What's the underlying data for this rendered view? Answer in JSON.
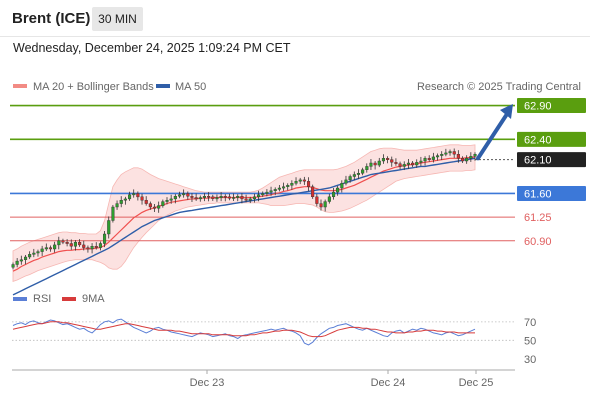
{
  "header": {
    "instrument": "Brent (ICE)",
    "timeframe": "30 MIN"
  },
  "datetime": "Wednesday, December 24, 2025 1:09:24 PM CET",
  "legend": {
    "ma20": "MA 20 + Bollinger Bands",
    "ma50": "MA 50",
    "credit": "Research © 2025 Trading Central"
  },
  "rsi_legend": {
    "rsi": "RSI",
    "ma9": "9MA"
  },
  "colors": {
    "up": "#2e9e2e",
    "down": "#d32f2f",
    "ma20": "#f0504f",
    "band": "#fbd3d1",
    "ma50": "#2f5ea8",
    "resistance": "#5a9e0f",
    "support_main": "#3c78d8",
    "support": "#e06060",
    "current": "#222222",
    "arrow": "#2f5ea8",
    "rsi": "#5b7fd6",
    "rsi_ma": "#d73b3b"
  },
  "chart_data": {
    "type": "candlestick",
    "title": "Brent (ICE)",
    "timeframe": "30 MIN",
    "ylim": [
      60.35,
      63.1
    ],
    "xlabels": [
      "Dec 23",
      "Dec 24",
      "Dec 25"
    ],
    "levels": [
      {
        "value": 62.9,
        "label": "62.90",
        "kind": "resistance"
      },
      {
        "value": 62.4,
        "label": "62.40",
        "kind": "resistance"
      },
      {
        "value": 62.1,
        "label": "62.10",
        "kind": "current"
      },
      {
        "value": 61.6,
        "label": "61.60",
        "kind": "support_main"
      },
      {
        "value": 61.25,
        "label": "61.25",
        "kind": "support"
      },
      {
        "value": 60.9,
        "label": "60.90",
        "kind": "support"
      }
    ],
    "close": [
      60.55,
      60.6,
      60.62,
      60.66,
      60.7,
      60.72,
      60.74,
      60.78,
      60.8,
      60.78,
      60.84,
      60.9,
      60.88,
      60.86,
      60.82,
      60.88,
      60.84,
      60.8,
      60.78,
      60.82,
      60.8,
      60.86,
      61.0,
      61.2,
      61.4,
      61.45,
      61.5,
      61.52,
      61.58,
      61.6,
      61.55,
      61.5,
      61.45,
      61.4,
      61.38,
      61.42,
      61.48,
      61.5,
      61.52,
      61.56,
      61.58,
      61.6,
      61.56,
      61.54,
      61.52,
      61.54,
      61.56,
      61.55,
      61.52,
      61.54,
      61.56,
      61.55,
      61.53,
      61.54,
      61.56,
      61.52,
      61.5,
      61.52,
      61.55,
      61.58,
      61.6,
      61.62,
      61.64,
      61.66,
      61.68,
      61.7,
      61.72,
      61.75,
      61.78,
      61.8,
      61.78,
      61.7,
      61.55,
      61.45,
      61.4,
      61.48,
      61.55,
      61.62,
      61.68,
      61.75,
      61.8,
      61.85,
      61.88,
      61.9,
      61.95,
      62.0,
      62.05,
      62.02,
      62.08,
      62.12,
      62.1,
      62.06,
      62.04,
      62.0,
      62.03,
      62.05,
      62.02,
      62.06,
      62.08,
      62.12,
      62.1,
      62.14,
      62.16,
      62.18,
      62.2,
      62.22,
      62.18,
      62.12,
      62.08,
      62.12,
      62.15,
      62.18
    ],
    "ma20": [
      60.45,
      60.48,
      60.52,
      60.55,
      60.58,
      60.61,
      60.63,
      60.66,
      60.68,
      60.7,
      60.72,
      60.74,
      60.75,
      60.76,
      60.76,
      60.77,
      60.77,
      60.78,
      60.78,
      60.78,
      60.79,
      60.8,
      60.83,
      60.88,
      60.94,
      61.0,
      61.06,
      61.12,
      61.18,
      61.24,
      61.28,
      61.32,
      61.35,
      61.37,
      61.39,
      61.41,
      61.43,
      61.45,
      61.47,
      61.48,
      61.49,
      61.5,
      61.51,
      61.52,
      61.52,
      61.53,
      61.53,
      61.53,
      61.54,
      61.54,
      61.54,
      61.54,
      61.54,
      61.54,
      61.54,
      61.54,
      61.54,
      61.54,
      61.54,
      61.55,
      61.56,
      61.57,
      61.58,
      61.6,
      61.61,
      61.63,
      61.64,
      61.66,
      61.68,
      61.69,
      61.7,
      61.7,
      61.69,
      61.67,
      61.65,
      61.64,
      61.64,
      61.64,
      61.65,
      61.66,
      61.68,
      61.7,
      61.72,
      61.75,
      61.78,
      61.81,
      61.84,
      61.87,
      61.9,
      61.93,
      61.95,
      61.97,
      61.99,
      62.0,
      62.01,
      62.02,
      62.03,
      62.04,
      62.05,
      62.06,
      62.07,
      62.08,
      62.09,
      62.1,
      62.11,
      62.12,
      62.12,
      62.12,
      62.12,
      62.13,
      62.13,
      62.14
    ],
    "band_upper": [
      60.75,
      60.78,
      60.82,
      60.85,
      60.88,
      60.9,
      60.92,
      60.94,
      60.96,
      60.98,
      61.0,
      61.02,
      61.03,
      61.03,
      61.02,
      61.02,
      61.01,
      61.01,
      61.0,
      61.0,
      61.0,
      61.05,
      61.2,
      61.45,
      61.7,
      61.8,
      61.88,
      61.92,
      61.95,
      61.98,
      61.98,
      61.96,
      61.92,
      61.88,
      61.85,
      61.82,
      61.8,
      61.78,
      61.76,
      61.74,
      61.72,
      61.7,
      61.68,
      61.66,
      61.64,
      61.63,
      61.62,
      61.62,
      61.62,
      61.62,
      61.62,
      61.62,
      61.62,
      61.62,
      61.62,
      61.62,
      61.62,
      61.62,
      61.63,
      61.65,
      61.68,
      61.72,
      61.76,
      61.8,
      61.84,
      61.86,
      61.88,
      61.9,
      61.92,
      61.94,
      61.95,
      61.95,
      61.95,
      61.95,
      61.95,
      61.95,
      61.95,
      61.95,
      61.96,
      61.98,
      62.0,
      62.03,
      62.06,
      62.1,
      62.14,
      62.18,
      62.22,
      62.24,
      62.26,
      62.27,
      62.27,
      62.27,
      62.26,
      62.25,
      62.24,
      62.24,
      62.24,
      62.24,
      62.25,
      62.26,
      62.27,
      62.28,
      62.29,
      62.3,
      62.31,
      62.32,
      62.32,
      62.32,
      62.31,
      62.31,
      62.31,
      62.32
    ],
    "band_lower": [
      60.3,
      60.32,
      60.35,
      60.38,
      60.4,
      60.43,
      60.46,
      60.48,
      60.5,
      60.52,
      60.54,
      60.56,
      60.58,
      60.6,
      60.61,
      60.62,
      60.62,
      60.62,
      60.62,
      60.62,
      60.6,
      60.58,
      60.55,
      60.5,
      60.48,
      60.48,
      60.52,
      60.6,
      60.7,
      60.8,
      60.88,
      60.95,
      61.02,
      61.08,
      61.14,
      61.2,
      61.24,
      61.28,
      61.31,
      61.34,
      61.36,
      61.38,
      61.4,
      61.41,
      61.42,
      61.43,
      61.44,
      61.45,
      61.45,
      61.46,
      61.46,
      61.46,
      61.46,
      61.46,
      61.46,
      61.46,
      61.46,
      61.46,
      61.46,
      61.46,
      61.45,
      61.44,
      61.42,
      61.42,
      61.42,
      61.42,
      61.43,
      61.44,
      61.45,
      61.45,
      61.45,
      61.44,
      61.43,
      61.4,
      61.36,
      61.33,
      61.32,
      61.32,
      61.33,
      61.34,
      61.36,
      61.38,
      61.41,
      61.44,
      61.47,
      61.5,
      61.54,
      61.58,
      61.62,
      61.66,
      61.7,
      61.74,
      61.78,
      61.8,
      61.82,
      61.83,
      61.84,
      61.85,
      61.86,
      61.87,
      61.88,
      61.89,
      61.9,
      61.91,
      61.92,
      61.93,
      61.93,
      61.93,
      61.93,
      61.94,
      61.94,
      61.95
    ],
    "ma50": [
      60.1,
      60.13,
      60.16,
      60.19,
      60.22,
      60.25,
      60.28,
      60.31,
      60.34,
      60.37,
      60.4,
      60.43,
      60.46,
      60.49,
      60.52,
      60.55,
      60.58,
      60.61,
      60.64,
      60.67,
      60.7,
      60.73,
      60.76,
      60.79,
      60.83,
      60.87,
      60.91,
      60.95,
      60.99,
      61.03,
      61.07,
      61.11,
      61.14,
      61.17,
      61.2,
      61.22,
      61.24,
      61.26,
      61.28,
      61.3,
      61.32,
      61.33,
      61.34,
      61.35,
      61.36,
      61.37,
      61.38,
      61.39,
      61.4,
      61.41,
      61.42,
      61.43,
      61.44,
      61.45,
      61.46,
      61.47,
      61.48,
      61.49,
      61.5,
      61.51,
      61.52,
      61.53,
      61.54,
      61.55,
      61.56,
      61.57,
      61.58,
      61.59,
      61.6,
      61.61,
      61.62,
      61.63,
      61.64,
      61.65,
      61.66,
      61.67,
      61.68,
      61.7,
      61.72,
      61.74,
      61.76,
      61.78,
      61.8,
      61.82,
      61.84,
      61.86,
      61.88,
      61.89,
      61.9,
      61.91,
      61.92,
      61.93,
      61.94,
      61.95,
      61.96,
      61.97,
      61.98,
      61.99,
      62.0,
      62.0,
      62.01,
      62.02,
      62.03,
      62.04,
      62.05,
      62.06,
      62.07,
      62.08,
      62.09,
      62.1,
      62.11,
      62.12
    ],
    "rsi": {
      "ylim": [
        20,
        85
      ],
      "ticks": [
        70,
        50,
        30
      ],
      "values": [
        66,
        68,
        69,
        67,
        70,
        71,
        69,
        68,
        70,
        72,
        71,
        69,
        67,
        68,
        66,
        64,
        62,
        63,
        60,
        58,
        62,
        67,
        70,
        71,
        69,
        72,
        73,
        70,
        67,
        64,
        62,
        60,
        58,
        60,
        63,
        64,
        62,
        61,
        59,
        58,
        57,
        56,
        55,
        54,
        56,
        58,
        57,
        56,
        54,
        55,
        56,
        57,
        55,
        54,
        52,
        55,
        56,
        57,
        58,
        59,
        60,
        61,
        62,
        61,
        62,
        63,
        61,
        60,
        58,
        55,
        47,
        45,
        48,
        53,
        57,
        60,
        63,
        64,
        66,
        67,
        68,
        66,
        64,
        62,
        61,
        63,
        61,
        59,
        57,
        55,
        54,
        58,
        60,
        61,
        58,
        60,
        62,
        61,
        63,
        62,
        60,
        58,
        57,
        56,
        58,
        59,
        57,
        55,
        56,
        58,
        60,
        62
      ],
      "ma9": [
        62,
        63,
        64,
        65,
        66,
        67,
        68,
        68,
        69,
        70,
        70,
        70,
        69,
        69,
        68,
        67,
        66,
        65,
        64,
        63,
        62,
        62,
        63,
        64,
        65,
        66,
        67,
        68,
        68,
        67,
        66,
        65,
        64,
        63,
        62,
        61,
        61,
        61,
        61,
        60,
        60,
        59,
        58,
        57,
        57,
        57,
        57,
        57,
        56,
        56,
        56,
        56,
        56,
        55,
        55,
        55,
        55,
        56,
        56,
        57,
        58,
        58,
        59,
        60,
        60,
        61,
        61,
        61,
        60,
        59,
        57,
        55,
        54,
        54,
        54,
        55,
        57,
        59,
        61,
        62,
        63,
        64,
        64,
        64,
        63,
        63,
        62,
        62,
        61,
        60,
        59,
        59,
        58,
        58,
        58,
        59,
        59,
        60,
        60,
        61,
        61,
        61,
        60,
        60,
        59,
        59,
        59,
        58,
        58,
        58,
        58,
        58
      ]
    }
  }
}
